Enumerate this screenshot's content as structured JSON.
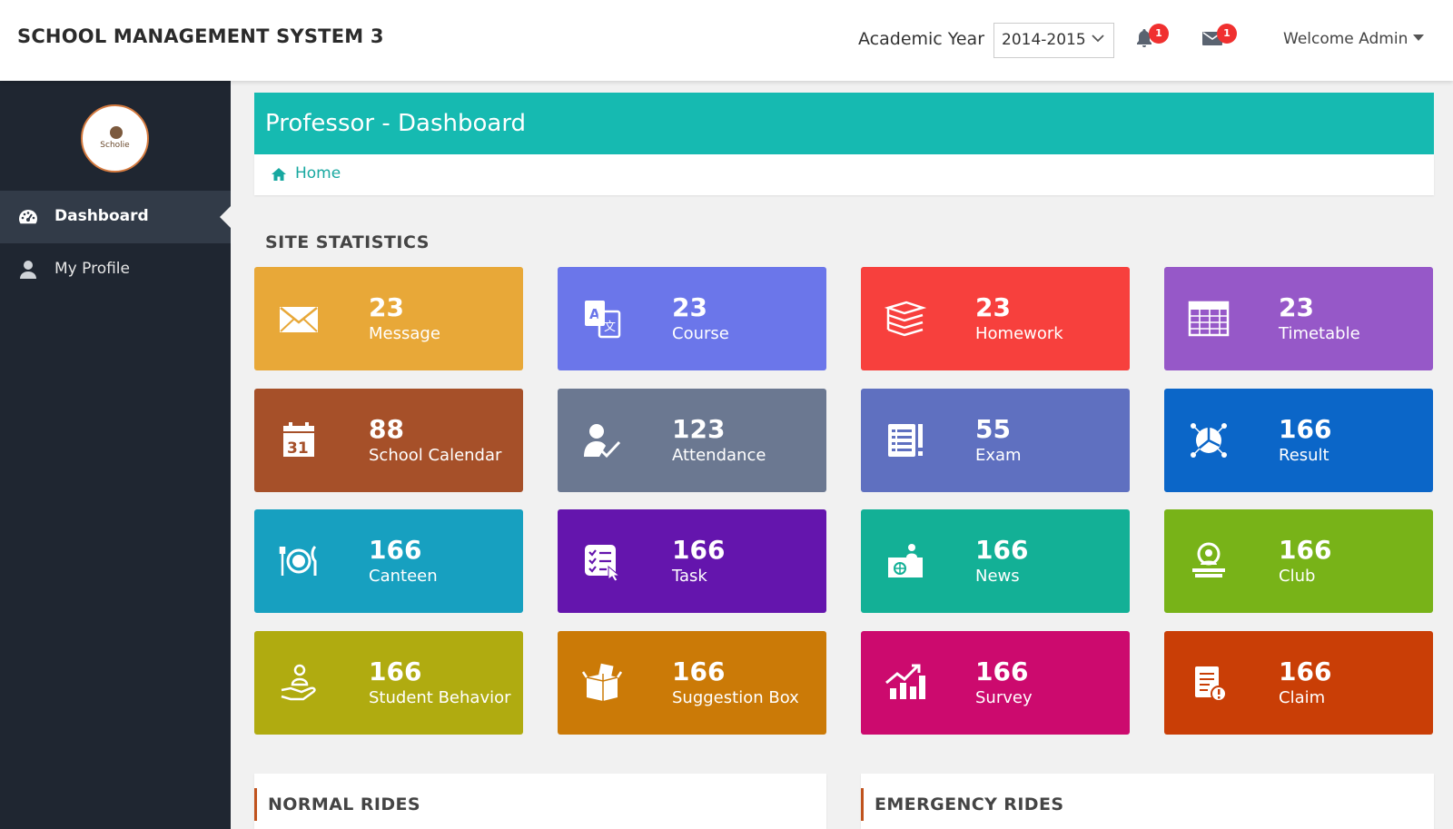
{
  "header": {
    "brand": "SCHOOL MANAGEMENT SYSTEM 3",
    "academic_year_label": "Academic Year",
    "academic_year_value": "2014-2015",
    "notifications_count": "1",
    "messages_count": "1",
    "welcome": "Welcome Admin"
  },
  "sidebar": {
    "logo_text": "Scholie",
    "items": [
      {
        "label": "Dashboard",
        "icon": "dashboard-icon"
      },
      {
        "label": "My Profile",
        "icon": "user-icon"
      }
    ]
  },
  "page": {
    "title": "Professor - Dashboard",
    "breadcrumb_home": "Home",
    "section_title": "SITE STATISTICS"
  },
  "tiles": [
    {
      "value": "23",
      "label": "Message",
      "color": "#e8a838",
      "icon": "envelope-icon"
    },
    {
      "value": "23",
      "label": "Course",
      "color": "#6b76ea",
      "icon": "translate-icon"
    },
    {
      "value": "23",
      "label": "Homework",
      "color": "#f7403d",
      "icon": "books-icon"
    },
    {
      "value": "23",
      "label": "Timetable",
      "color": "#9658c8",
      "icon": "table-icon"
    },
    {
      "value": "88",
      "label": "School Calendar",
      "color": "#a65029",
      "icon": "calendar-icon"
    },
    {
      "value": "123",
      "label": "Attendance",
      "color": "#6b7891",
      "icon": "attendance-icon"
    },
    {
      "value": "55",
      "label": "Exam",
      "color": "#5f70c0",
      "icon": "exam-icon"
    },
    {
      "value": "166",
      "label": "Result",
      "color": "#0b66c8",
      "icon": "result-icon"
    },
    {
      "value": "166",
      "label": "Canteen",
      "color": "#17a0c0",
      "icon": "canteen-icon"
    },
    {
      "value": "166",
      "label": "Task",
      "color": "#6415ad",
      "icon": "task-icon"
    },
    {
      "value": "166",
      "label": "News",
      "color": "#13b096",
      "icon": "news-icon"
    },
    {
      "value": "166",
      "label": "Club",
      "color": "#78b318",
      "icon": "club-icon"
    },
    {
      "value": "166",
      "label": "Student Behavior",
      "color": "#b0ab10",
      "icon": "behavior-icon"
    },
    {
      "value": "166",
      "label": "Suggestion Box",
      "color": "#cb7a07",
      "icon": "suggestion-box-icon"
    },
    {
      "value": "166",
      "label": "Survey",
      "color": "#cc0a6e",
      "icon": "survey-icon"
    },
    {
      "value": "166",
      "label": "Claim",
      "color": "#c93e06",
      "icon": "claim-icon"
    }
  ],
  "panels": [
    {
      "title": "NORMAL RIDES"
    },
    {
      "title": "EMERGENCY RIDES"
    }
  ]
}
